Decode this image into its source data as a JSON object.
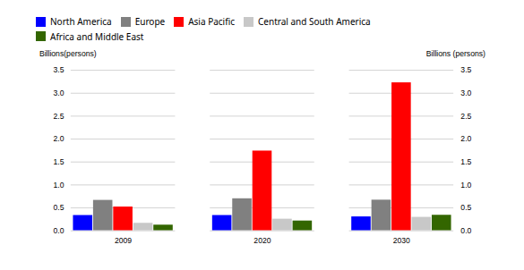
{
  "chart_data": {
    "type": "bar",
    "categories": [
      "2009",
      "2020",
      "2030"
    ],
    "series": [
      {
        "name": "North America",
        "color": "#0000ff",
        "values": [
          0.335,
          0.335,
          0.305
        ]
      },
      {
        "name": "Europe",
        "color": "#808080",
        "values": [
          0.665,
          0.7,
          0.67
        ]
      },
      {
        "name": "Asia Pacific",
        "color": "#ff0000",
        "values": [
          0.52,
          1.74,
          3.228
        ]
      },
      {
        "name": "Central and South America",
        "color": "#c8c8c8",
        "values": [
          0.165,
          0.255,
          0.295
        ]
      },
      {
        "name": "Africa and Middle East",
        "color": "#336600",
        "values": [
          0.125,
          0.215,
          0.34
        ]
      }
    ],
    "ylabel": "Billions(persons)",
    "y2label": "Billions (persons)",
    "ylim": [
      0,
      3.5
    ],
    "yticks": [
      {
        "value": 0,
        "label": "0.0"
      },
      0.5,
      {
        "value": 1,
        "label": "1.0"
      },
      1.5,
      {
        "value": 2,
        "label": "2.0"
      },
      2.5,
      {
        "value": 3,
        "label": "3.0"
      },
      3.5
    ],
    "y2lim": [
      0,
      3.5
    ],
    "y2ticks": [
      {
        "value": 0,
        "label": "0.0"
      },
      0.5,
      {
        "value": 1,
        "label": "1.0"
      },
      1.5,
      {
        "value": 2,
        "label": "2.0"
      },
      2.5,
      {
        "value": 3,
        "label": "3.0"
      },
      3.5
    ],
    "grid": true,
    "legend": "upper left"
  }
}
